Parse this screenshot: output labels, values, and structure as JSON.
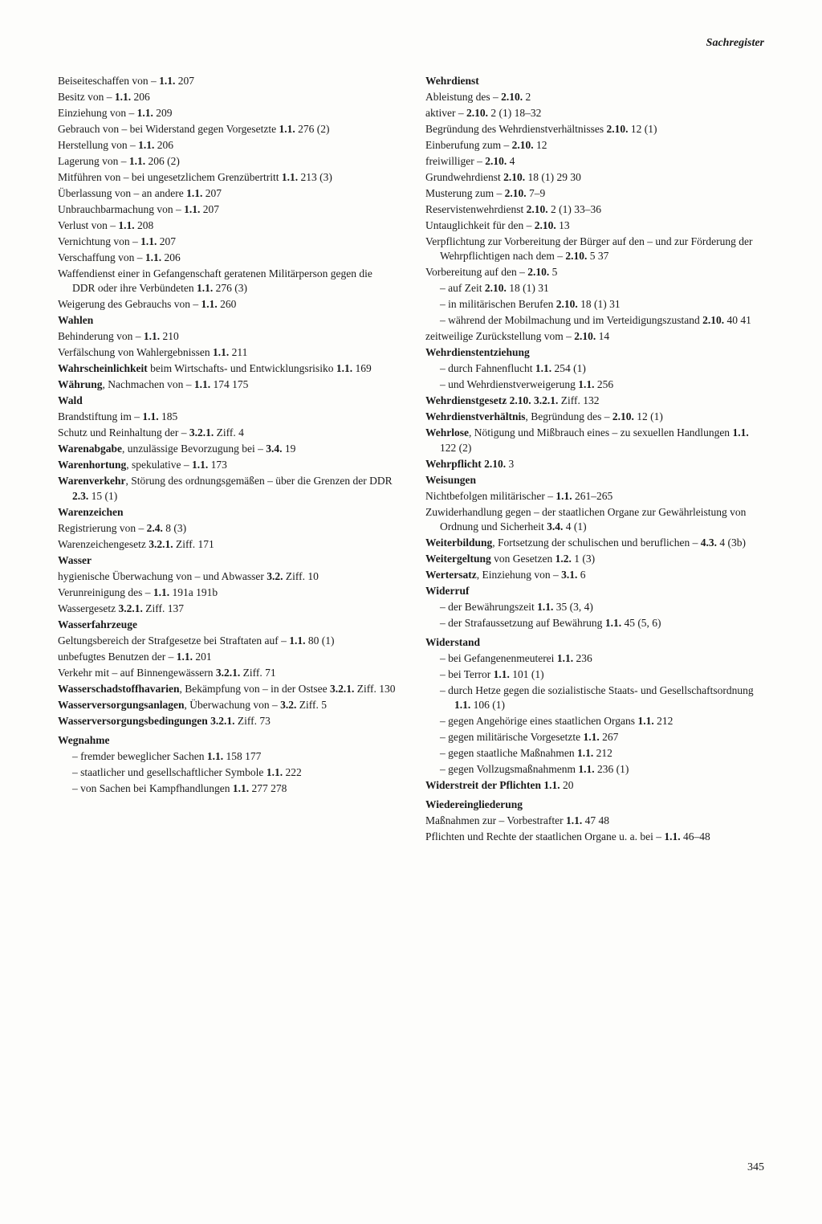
{
  "running_head": "Sachregister",
  "page_number": "345",
  "left_column": [
    {
      "t": "entry",
      "parts": [
        {
          "txt": "Beiseiteschaffen von – "
        },
        {
          "b": "1.1."
        },
        {
          "txt": " 207"
        }
      ]
    },
    {
      "t": "entry",
      "parts": [
        {
          "txt": "Besitz von – "
        },
        {
          "b": "1.1."
        },
        {
          "txt": " 206"
        }
      ]
    },
    {
      "t": "entry",
      "parts": [
        {
          "txt": "Einziehung von – "
        },
        {
          "b": "1.1."
        },
        {
          "txt": " 209"
        }
      ]
    },
    {
      "t": "entry",
      "parts": [
        {
          "txt": "Gebrauch von – bei Widerstand gegen Vorgesetzte "
        },
        {
          "b": "1.1."
        },
        {
          "txt": " 276 (2)"
        }
      ]
    },
    {
      "t": "entry",
      "parts": [
        {
          "txt": "Herstellung von – "
        },
        {
          "b": "1.1."
        },
        {
          "txt": " 206"
        }
      ]
    },
    {
      "t": "entry",
      "parts": [
        {
          "txt": "Lagerung von – "
        },
        {
          "b": "1.1."
        },
        {
          "txt": " 206 (2)"
        }
      ]
    },
    {
      "t": "entry",
      "parts": [
        {
          "txt": "Mitführen von – bei ungesetzlichem Grenzübertritt "
        },
        {
          "b": "1.1."
        },
        {
          "txt": " 213 (3)"
        }
      ]
    },
    {
      "t": "entry",
      "parts": [
        {
          "txt": "Überlassung von – an andere "
        },
        {
          "b": "1.1."
        },
        {
          "txt": " 207"
        }
      ]
    },
    {
      "t": "entry",
      "parts": [
        {
          "txt": "Unbrauchbarmachung von – "
        },
        {
          "b": "1.1."
        },
        {
          "txt": " 207"
        }
      ]
    },
    {
      "t": "entry",
      "parts": [
        {
          "txt": "Verlust von – "
        },
        {
          "b": "1.1."
        },
        {
          "txt": " 208"
        }
      ]
    },
    {
      "t": "entry",
      "parts": [
        {
          "txt": "Vernichtung von – "
        },
        {
          "b": "1.1."
        },
        {
          "txt": " 207"
        }
      ]
    },
    {
      "t": "entry",
      "parts": [
        {
          "txt": "Verschaffung von – "
        },
        {
          "b": "1.1."
        },
        {
          "txt": " 206"
        }
      ]
    },
    {
      "t": "entry",
      "parts": [
        {
          "txt": "Waffendienst einer in Gefangenschaft geratenen Militärperson gegen die DDR oder ihre Verbündeten "
        },
        {
          "b": "1.1."
        },
        {
          "txt": " 276 (3)"
        }
      ]
    },
    {
      "t": "entry",
      "parts": [
        {
          "txt": "Weigerung des Gebrauchs von – "
        },
        {
          "b": "1.1."
        },
        {
          "txt": " 260"
        }
      ]
    },
    {
      "t": "entry",
      "parts": [
        {
          "b": "Wahlen"
        }
      ]
    },
    {
      "t": "entry",
      "parts": [
        {
          "txt": "Behinderung von – "
        },
        {
          "b": "1.1."
        },
        {
          "txt": " 210"
        }
      ]
    },
    {
      "t": "entry",
      "parts": [
        {
          "txt": "Verfälschung von Wahlergebnissen "
        },
        {
          "b": "1.1."
        },
        {
          "txt": " 211"
        }
      ]
    },
    {
      "t": "entry",
      "parts": [
        {
          "b": "Wahrscheinlichkeit"
        },
        {
          "txt": " beim Wirtschafts- und Entwicklungsrisiko "
        },
        {
          "b": "1.1."
        },
        {
          "txt": " 169"
        }
      ]
    },
    {
      "t": "entry",
      "parts": [
        {
          "b": "Währung"
        },
        {
          "txt": ", Nachmachen von – "
        },
        {
          "b": "1.1."
        },
        {
          "txt": " 174 175"
        }
      ]
    },
    {
      "t": "entry",
      "parts": [
        {
          "b": "Wald"
        }
      ]
    },
    {
      "t": "entry",
      "parts": [
        {
          "txt": "Brandstiftung im – "
        },
        {
          "b": "1.1."
        },
        {
          "txt": " 185"
        }
      ]
    },
    {
      "t": "entry",
      "parts": [
        {
          "txt": "Schutz und Reinhaltung der – "
        },
        {
          "b": "3.2.1."
        },
        {
          "txt": " Ziff. 4"
        }
      ]
    },
    {
      "t": "entry",
      "parts": [
        {
          "b": "Warenabgabe"
        },
        {
          "txt": ", unzulässige Bevorzugung bei – "
        },
        {
          "b": "3.4."
        },
        {
          "txt": " 19"
        }
      ]
    },
    {
      "t": "entry",
      "parts": [
        {
          "b": "Warenhortung"
        },
        {
          "txt": ", spekulative – "
        },
        {
          "b": "1.1."
        },
        {
          "txt": " 173"
        }
      ]
    },
    {
      "t": "entry",
      "parts": [
        {
          "b": "Warenverkehr"
        },
        {
          "txt": ", Störung des ordnungsgemäßen – über die Grenzen der DDR "
        },
        {
          "b": "2.3."
        },
        {
          "txt": " 15 (1)"
        }
      ]
    },
    {
      "t": "entry",
      "parts": [
        {
          "b": "Warenzeichen"
        }
      ]
    },
    {
      "t": "entry",
      "parts": [
        {
          "txt": "Registrierung von – "
        },
        {
          "b": "2.4."
        },
        {
          "txt": " 8 (3)"
        }
      ]
    },
    {
      "t": "entry",
      "parts": [
        {
          "txt": "Warenzeichengesetz "
        },
        {
          "b": "3.2.1."
        },
        {
          "txt": " Ziff. 171"
        }
      ]
    },
    {
      "t": "entry",
      "parts": [
        {
          "b": "Wasser"
        }
      ]
    },
    {
      "t": "entry",
      "parts": [
        {
          "txt": "hygienische Überwachung von – und Abwasser "
        },
        {
          "b": "3.2."
        },
        {
          "txt": " Ziff. 10"
        }
      ]
    },
    {
      "t": "entry",
      "parts": [
        {
          "txt": "Verunreinigung des – "
        },
        {
          "b": "1.1."
        },
        {
          "txt": " 191a 191b"
        }
      ]
    },
    {
      "t": "entry",
      "parts": [
        {
          "txt": "Wassergesetz "
        },
        {
          "b": "3.2.1."
        },
        {
          "txt": " Ziff. 137"
        }
      ]
    },
    {
      "t": "entry",
      "parts": [
        {
          "b": "Wasserfahrzeuge"
        }
      ]
    },
    {
      "t": "entry",
      "parts": [
        {
          "txt": "Geltungsbereich der Strafgesetze bei Straftaten auf – "
        },
        {
          "b": "1.1."
        },
        {
          "txt": " 80 (1)"
        }
      ]
    },
    {
      "t": "entry",
      "parts": [
        {
          "txt": "unbefugtes Benutzen der – "
        },
        {
          "b": "1.1."
        },
        {
          "txt": " 201"
        }
      ]
    },
    {
      "t": "entry",
      "parts": [
        {
          "txt": "Verkehr mit – auf Binnengewässern "
        },
        {
          "b": "3.2.1."
        },
        {
          "txt": " Ziff. 71"
        }
      ]
    },
    {
      "t": "entry",
      "parts": [
        {
          "b": "Wasserschadstoffhavarien"
        },
        {
          "txt": ", Bekämpfung von – in der Ostsee "
        },
        {
          "b": "3.2.1."
        },
        {
          "txt": " Ziff. 130"
        }
      ]
    },
    {
      "t": "entry",
      "parts": [
        {
          "b": "Wasserversorgungsanlagen"
        },
        {
          "txt": ", Überwachung von – "
        },
        {
          "b": "3.2."
        },
        {
          "txt": " Ziff. 5"
        }
      ]
    },
    {
      "t": "entry",
      "parts": [
        {
          "b": "Wasserversorgungsbedingungen"
        },
        {
          "txt": " "
        },
        {
          "b": "3.2.1."
        },
        {
          "txt": " Ziff. 73"
        }
      ]
    },
    {
      "t": "vspace"
    },
    {
      "t": "entry",
      "parts": [
        {
          "b": "Wegnahme"
        }
      ]
    },
    {
      "t": "sub",
      "parts": [
        {
          "txt": "– fremder beweglicher Sachen "
        },
        {
          "b": "1.1."
        },
        {
          "txt": " 158 177"
        }
      ]
    },
    {
      "t": "sub",
      "parts": [
        {
          "txt": "– staatlicher und gesellschaftlicher Symbole "
        },
        {
          "b": "1.1."
        },
        {
          "txt": " 222"
        }
      ]
    },
    {
      "t": "sub",
      "parts": [
        {
          "txt": "– von Sachen bei Kampfhandlungen "
        },
        {
          "b": "1.1."
        },
        {
          "txt": " 277 278"
        }
      ]
    }
  ],
  "right_column": [
    {
      "t": "entry",
      "parts": [
        {
          "b": "Wehrdienst"
        }
      ]
    },
    {
      "t": "entry",
      "parts": [
        {
          "txt": "Ableistung des – "
        },
        {
          "b": "2.10."
        },
        {
          "txt": " 2"
        }
      ]
    },
    {
      "t": "entry",
      "parts": [
        {
          "txt": "aktiver – "
        },
        {
          "b": "2.10."
        },
        {
          "txt": " 2 (1) 18–32"
        }
      ]
    },
    {
      "t": "entry",
      "parts": [
        {
          "txt": "Begründung des Wehrdienstverhältnisses "
        },
        {
          "b": "2.10."
        },
        {
          "txt": " 12 (1)"
        }
      ]
    },
    {
      "t": "entry",
      "parts": [
        {
          "txt": "Einberufung zum – "
        },
        {
          "b": "2.10."
        },
        {
          "txt": " 12"
        }
      ]
    },
    {
      "t": "entry",
      "parts": [
        {
          "txt": "freiwilliger – "
        },
        {
          "b": "2.10."
        },
        {
          "txt": " 4"
        }
      ]
    },
    {
      "t": "entry",
      "parts": [
        {
          "txt": "Grundwehrdienst "
        },
        {
          "b": "2.10."
        },
        {
          "txt": " 18 (1) 29 30"
        }
      ]
    },
    {
      "t": "entry",
      "parts": [
        {
          "txt": "Musterung zum – "
        },
        {
          "b": "2.10."
        },
        {
          "txt": " 7–9"
        }
      ]
    },
    {
      "t": "entry",
      "parts": [
        {
          "txt": "Reservistenwehrdienst "
        },
        {
          "b": "2.10."
        },
        {
          "txt": " 2 (1) 33–36"
        }
      ]
    },
    {
      "t": "entry",
      "parts": [
        {
          "txt": "Untauglichkeit für den – "
        },
        {
          "b": "2.10."
        },
        {
          "txt": " 13"
        }
      ]
    },
    {
      "t": "entry",
      "parts": [
        {
          "txt": "Verpflichtung zur Vorbereitung der Bürger auf den – und zur Förderung der Wehrpflichtigen nach dem – "
        },
        {
          "b": "2.10."
        },
        {
          "txt": " 5 37"
        }
      ]
    },
    {
      "t": "entry",
      "parts": [
        {
          "txt": "Vorbereitung auf den – "
        },
        {
          "b": "2.10."
        },
        {
          "txt": " 5"
        }
      ]
    },
    {
      "t": "sub",
      "parts": [
        {
          "txt": "– auf Zeit "
        },
        {
          "b": "2.10."
        },
        {
          "txt": " 18 (1) 31"
        }
      ]
    },
    {
      "t": "sub",
      "parts": [
        {
          "txt": "– in militärischen Berufen "
        },
        {
          "b": "2.10."
        },
        {
          "txt": " 18 (1) 31"
        }
      ]
    },
    {
      "t": "sub",
      "parts": [
        {
          "txt": "– während der Mobilmachung und im Verteidigungszustand "
        },
        {
          "b": "2.10."
        },
        {
          "txt": " 40 41"
        }
      ]
    },
    {
      "t": "entry",
      "parts": [
        {
          "txt": "zeitweilige Zurückstellung vom – "
        },
        {
          "b": "2.10."
        },
        {
          "txt": " 14"
        }
      ]
    },
    {
      "t": "entry",
      "parts": [
        {
          "b": "Wehrdienstentziehung"
        }
      ]
    },
    {
      "t": "sub",
      "parts": [
        {
          "txt": "– durch Fahnenflucht "
        },
        {
          "b": "1.1."
        },
        {
          "txt": " 254 (1)"
        }
      ]
    },
    {
      "t": "sub",
      "parts": [
        {
          "txt": "– und Wehrdienstverweigerung "
        },
        {
          "b": "1.1."
        },
        {
          "txt": " 256"
        }
      ]
    },
    {
      "t": "entry",
      "parts": [
        {
          "b": "Wehrdienstgesetz"
        },
        {
          "txt": " "
        },
        {
          "b": "2.10."
        },
        {
          "txt": " "
        },
        {
          "b": "3.2.1."
        },
        {
          "txt": " Ziff. 132"
        }
      ]
    },
    {
      "t": "entry",
      "parts": [
        {
          "b": "Wehrdienstverhältnis"
        },
        {
          "txt": ", Begründung des – "
        },
        {
          "b": "2.10."
        },
        {
          "txt": " 12 (1)"
        }
      ]
    },
    {
      "t": "entry",
      "parts": [
        {
          "b": "Wehrlose"
        },
        {
          "txt": ", Nötigung und Mißbrauch eines – zu sexuellen Handlungen "
        },
        {
          "b": "1.1."
        },
        {
          "txt": " 122 (2)"
        }
      ]
    },
    {
      "t": "entry",
      "parts": [
        {
          "b": "Wehrpflicht"
        },
        {
          "txt": " "
        },
        {
          "b": "2.10."
        },
        {
          "txt": " 3"
        }
      ]
    },
    {
      "t": "entry",
      "parts": [
        {
          "b": "Weisungen"
        }
      ]
    },
    {
      "t": "entry",
      "parts": [
        {
          "txt": "Nichtbefolgen militärischer – "
        },
        {
          "b": "1.1."
        },
        {
          "txt": " 261–265"
        }
      ]
    },
    {
      "t": "entry",
      "parts": [
        {
          "txt": "Zuwiderhandlung gegen – der staatlichen Organe zur Gewährleistung von Ordnung und Sicherheit "
        },
        {
          "b": "3.4."
        },
        {
          "txt": " 4 (1)"
        }
      ]
    },
    {
      "t": "entry",
      "parts": [
        {
          "b": "Weiterbildung"
        },
        {
          "txt": ", Fortsetzung der schulischen und beruflichen – "
        },
        {
          "b": "4.3."
        },
        {
          "txt": " 4 (3b)"
        }
      ]
    },
    {
      "t": "entry",
      "parts": [
        {
          "b": "Weitergeltung"
        },
        {
          "txt": " von Gesetzen "
        },
        {
          "b": "1.2."
        },
        {
          "txt": " 1 (3)"
        }
      ]
    },
    {
      "t": "entry",
      "parts": [
        {
          "b": "Wertersatz"
        },
        {
          "txt": ", Einziehung von – "
        },
        {
          "b": "3.1."
        },
        {
          "txt": " 6"
        }
      ]
    },
    {
      "t": "entry",
      "parts": [
        {
          "b": "Widerruf"
        }
      ]
    },
    {
      "t": "sub",
      "parts": [
        {
          "txt": "– der Bewährungszeit "
        },
        {
          "b": "1.1."
        },
        {
          "txt": " 35 (3, 4)"
        }
      ]
    },
    {
      "t": "sub",
      "parts": [
        {
          "txt": "– der Strafaussetzung auf Bewährung "
        },
        {
          "b": "1.1."
        },
        {
          "txt": " 45 (5, 6)"
        }
      ]
    },
    {
      "t": "vspace"
    },
    {
      "t": "entry",
      "parts": [
        {
          "b": "Widerstand"
        }
      ]
    },
    {
      "t": "sub",
      "parts": [
        {
          "txt": "– bei Gefangenenmeuterei "
        },
        {
          "b": "1.1."
        },
        {
          "txt": " 236"
        }
      ]
    },
    {
      "t": "sub",
      "parts": [
        {
          "txt": "– bei Terror "
        },
        {
          "b": "1.1."
        },
        {
          "txt": " 101 (1)"
        }
      ]
    },
    {
      "t": "sub",
      "parts": [
        {
          "txt": "– durch Hetze gegen die sozialistische Staats- und Gesellschaftsordnung "
        },
        {
          "b": "1.1."
        },
        {
          "txt": " 106 (1)"
        }
      ]
    },
    {
      "t": "sub",
      "parts": [
        {
          "txt": "– gegen Angehörige eines staatlichen Organs "
        },
        {
          "b": "1.1."
        },
        {
          "txt": " 212"
        }
      ]
    },
    {
      "t": "sub",
      "parts": [
        {
          "txt": "– gegen militärische Vorgesetzte "
        },
        {
          "b": "1.1."
        },
        {
          "txt": " 267"
        }
      ]
    },
    {
      "t": "sub",
      "parts": [
        {
          "txt": "– gegen staatliche Maßnahmen "
        },
        {
          "b": "1.1."
        },
        {
          "txt": " 212"
        }
      ]
    },
    {
      "t": "sub",
      "parts": [
        {
          "txt": "– gegen Vollzugsmaßnahmenm "
        },
        {
          "b": "1.1."
        },
        {
          "txt": " 236 (1)"
        }
      ]
    },
    {
      "t": "entry",
      "parts": [
        {
          "b": "Widerstreit der Pflichten"
        },
        {
          "txt": " "
        },
        {
          "b": "1.1."
        },
        {
          "txt": " 20"
        }
      ]
    },
    {
      "t": "vspace"
    },
    {
      "t": "entry",
      "parts": [
        {
          "b": "Wiedereingliederung"
        }
      ]
    },
    {
      "t": "entry",
      "parts": [
        {
          "txt": "Maßnahmen zur – Vorbestrafter "
        },
        {
          "b": "1.1."
        },
        {
          "txt": " 47 48"
        }
      ]
    },
    {
      "t": "entry",
      "parts": [
        {
          "txt": "Pflichten und Rechte der staatlichen Organe u. a. bei – "
        },
        {
          "b": "1.1."
        },
        {
          "txt": " 46–48"
        }
      ]
    }
  ]
}
